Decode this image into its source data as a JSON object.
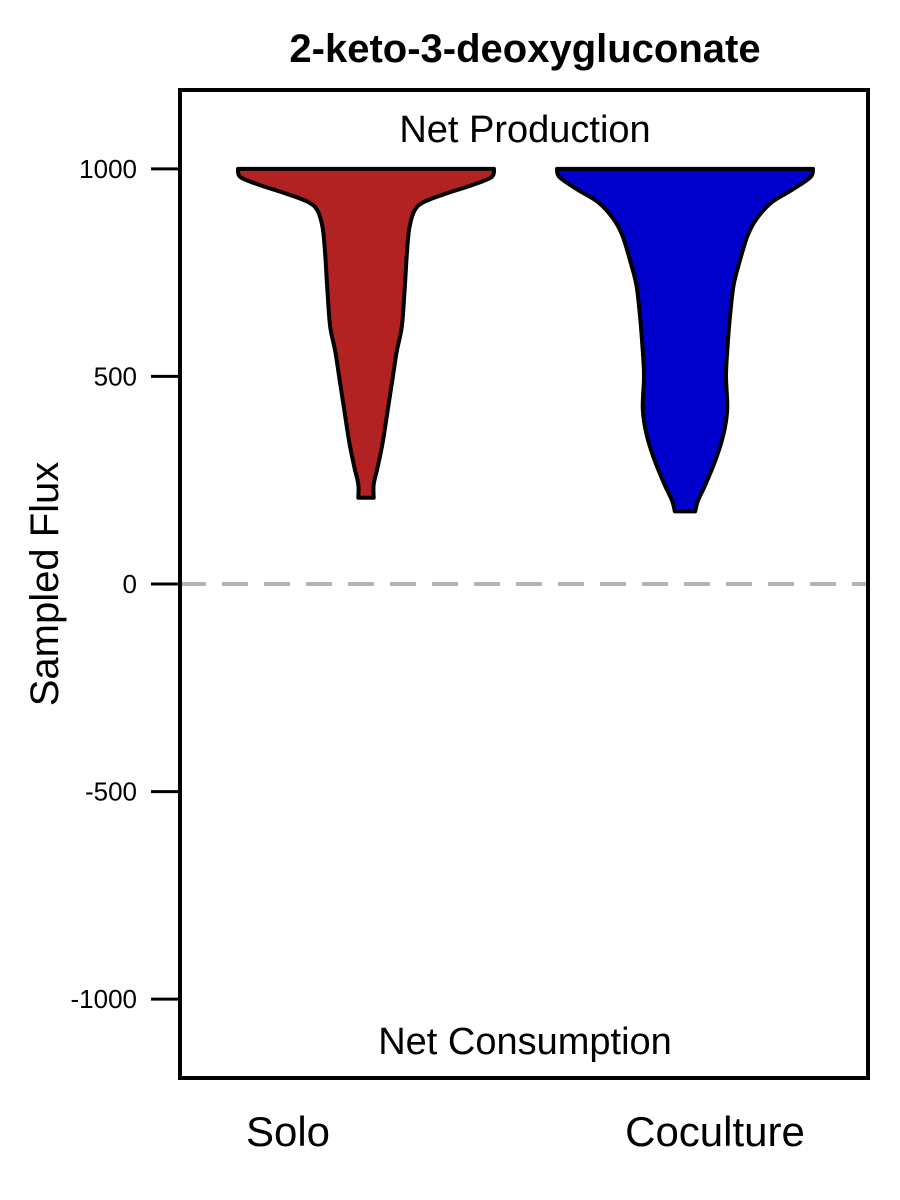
{
  "chart_data": {
    "type": "violin",
    "title": "2-keto-3-deoxygluconate",
    "xlabel": "",
    "ylabel": "Sampled Flux",
    "ylim": [
      -1190,
      1190
    ],
    "yticks": [
      1000,
      500,
      0,
      -500,
      -1000
    ],
    "ytick_labels": [
      "1000",
      "500",
      "0",
      "-500",
      "-1000"
    ],
    "categories": [
      "Solo",
      "Coculture"
    ],
    "reference_line": {
      "y": 0,
      "style": "dashed",
      "color": "#b3b3b3"
    },
    "annotations": {
      "top": "Net Production",
      "bottom": "Net Consumption"
    },
    "grid": false,
    "series": [
      {
        "category": "Solo",
        "color": "#b22222",
        "min": 208,
        "max": 1000,
        "density_profile": [
          [
            1000,
            1.0
          ],
          [
            980,
            0.98
          ],
          [
            960,
            0.82
          ],
          [
            940,
            0.62
          ],
          [
            920,
            0.45
          ],
          [
            900,
            0.38
          ],
          [
            860,
            0.34
          ],
          [
            800,
            0.32
          ],
          [
            700,
            0.3
          ],
          [
            620,
            0.28
          ],
          [
            560,
            0.24
          ],
          [
            500,
            0.21
          ],
          [
            420,
            0.17
          ],
          [
            340,
            0.13
          ],
          [
            280,
            0.09
          ],
          [
            240,
            0.06
          ],
          [
            208,
            0.06
          ]
        ]
      },
      {
        "category": "Coculture",
        "color": "#0000cd",
        "min": 175,
        "max": 1000,
        "density_profile": [
          [
            1000,
            1.0
          ],
          [
            980,
            0.98
          ],
          [
            950,
            0.84
          ],
          [
            920,
            0.68
          ],
          [
            880,
            0.56
          ],
          [
            840,
            0.49
          ],
          [
            780,
            0.43
          ],
          [
            720,
            0.38
          ],
          [
            640,
            0.35
          ],
          [
            560,
            0.33
          ],
          [
            500,
            0.32
          ],
          [
            420,
            0.33
          ],
          [
            360,
            0.3
          ],
          [
            300,
            0.24
          ],
          [
            240,
            0.16
          ],
          [
            200,
            0.1
          ],
          [
            175,
            0.08
          ]
        ]
      }
    ]
  }
}
